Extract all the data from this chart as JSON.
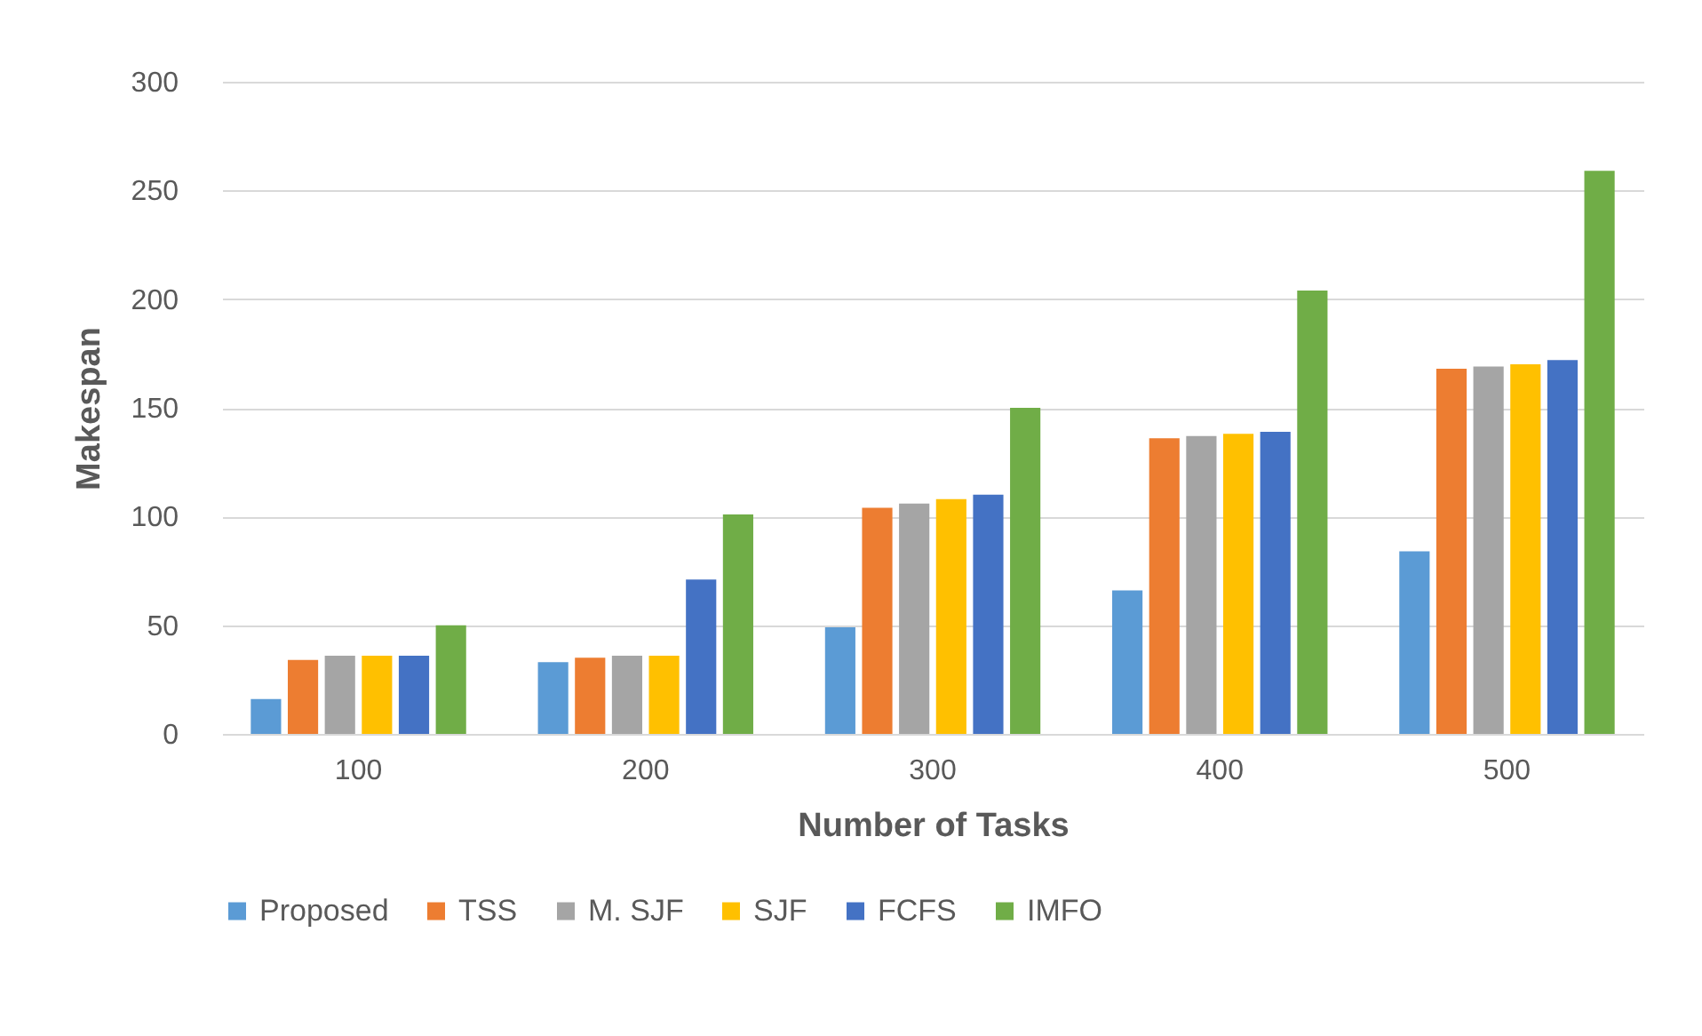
{
  "chart_data": {
    "type": "bar",
    "xlabel": "Number of Tasks",
    "ylabel": "Makespan",
    "categories": [
      "100",
      "200",
      "300",
      "400",
      "500"
    ],
    "series": [
      {
        "name": "Proposed",
        "color": "#5b9bd5",
        "values": [
          16,
          33,
          49,
          66,
          84
        ]
      },
      {
        "name": "TSS",
        "color": "#ed7d31",
        "values": [
          34,
          35,
          104,
          136,
          168
        ]
      },
      {
        "name": "M. SJF",
        "color": "#a5a5a5",
        "values": [
          36,
          36,
          106,
          137,
          169
        ]
      },
      {
        "name": "SJF",
        "color": "#ffc000",
        "values": [
          36,
          36,
          108,
          138,
          170
        ]
      },
      {
        "name": "FCFS",
        "color": "#4472c4",
        "values": [
          36,
          71,
          110,
          139,
          172
        ]
      },
      {
        "name": "IMFO",
        "color": "#70ad47",
        "values": [
          50,
          101,
          150,
          204,
          259
        ]
      }
    ],
    "ylim": [
      0,
      300
    ],
    "yticks": [
      0,
      50,
      100,
      150,
      200,
      250,
      300
    ],
    "grid": "y",
    "legend": "bottom"
  }
}
